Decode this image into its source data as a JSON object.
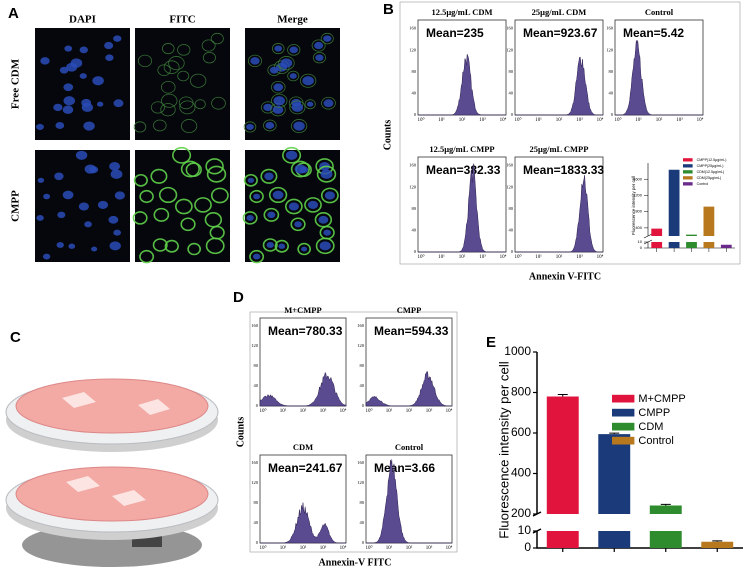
{
  "panel_a": {
    "letter": "A",
    "columns": [
      "DAPI",
      "FITC",
      "Merge"
    ],
    "rows": [
      "Free CDM",
      "CMPP"
    ]
  },
  "panel_b": {
    "letter": "B",
    "ylabel": "Counts",
    "xlabel": "Annexin V-FITC",
    "yticks": [
      "0",
      "40",
      "80",
      "120",
      "160"
    ],
    "xticks": [
      "10⁰",
      "10¹",
      "10²",
      "10³",
      "10⁴"
    ],
    "histograms": [
      {
        "title": "12.5μg/mL CDM",
        "mean": "Mean=235"
      },
      {
        "title": "25μg/mL CDM",
        "mean": "Mean=923.67"
      },
      {
        "title": "Control",
        "mean": "Mean=5.42"
      },
      {
        "title": "12.5μg/mL CMPP",
        "mean": "Mean=382.33"
      },
      {
        "title": "25μg/mL CMPP",
        "mean": "Mean=1833.33"
      }
    ]
  },
  "panel_c": {
    "letter": "C"
  },
  "panel_d": {
    "letter": "D",
    "ylabel": "Counts",
    "xlabel": "Annexin-V FITC",
    "yticks": [
      "0",
      "40",
      "80",
      "120",
      "160"
    ],
    "xticks": [
      "10⁰",
      "10¹",
      "10²",
      "10³",
      "10⁴"
    ],
    "histograms": [
      {
        "title": "M+CMPP",
        "mean": "Mean=780.33"
      },
      {
        "title": "CMPP",
        "mean": "Mean=594.33"
      },
      {
        "title": "CDM",
        "mean": "Mean=241.67"
      },
      {
        "title": "Control",
        "mean": "Mean=3.66"
      }
    ]
  },
  "panel_e": {
    "letter": "E"
  },
  "chart_data": [
    {
      "type": "bar",
      "ylabel": "Fluorescence intensity per cell",
      "categories": [
        "M+CMPP",
        "CMPP",
        "CDM",
        "Control"
      ],
      "values": [
        780.33,
        594.33,
        241.67,
        3.66
      ],
      "errors": [
        10,
        5,
        6,
        0.5
      ],
      "colors": [
        "#e0143c",
        "#1a3a7a",
        "#2e8b2e",
        "#b8791e"
      ],
      "ylim": [
        0,
        1000
      ],
      "ybreak": [
        10,
        200
      ],
      "yticks": [
        0,
        10,
        200,
        400,
        600,
        800,
        1000
      ],
      "legend": "top-right"
    },
    {
      "type": "bar",
      "ylabel": "Fluorescence intensity per cell",
      "categories": [
        "CMPP(12.5μg/mL)",
        "CMPP(25μg/mL)",
        "CDM(12.5μg/mL)",
        "CDM(25μg/mL)",
        "Control"
      ],
      "values": [
        382.33,
        1833.33,
        235,
        923.67,
        5.42
      ],
      "colors": [
        "#e0143c",
        "#1a3a7a",
        "#2e8b2e",
        "#b8791e",
        "#6a2a8a"
      ],
      "ylim": [
        0,
        2000
      ],
      "ybreak": [
        10,
        200
      ],
      "yticks": [
        0,
        10,
        400,
        800,
        1200,
        1600
      ],
      "legend": "top-right"
    }
  ]
}
